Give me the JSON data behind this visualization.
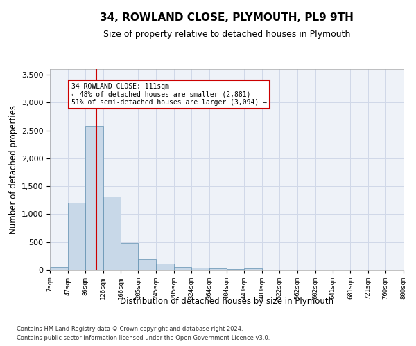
{
  "title": "34, ROWLAND CLOSE, PLYMOUTH, PL9 9TH",
  "subtitle": "Size of property relative to detached houses in Plymouth",
  "xlabel": "Distribution of detached houses by size in Plymouth",
  "ylabel": "Number of detached properties",
  "bin_labels": [
    "7sqm",
    "47sqm",
    "86sqm",
    "126sqm",
    "166sqm",
    "205sqm",
    "245sqm",
    "285sqm",
    "324sqm",
    "364sqm",
    "404sqm",
    "443sqm",
    "483sqm",
    "522sqm",
    "562sqm",
    "602sqm",
    "641sqm",
    "681sqm",
    "721sqm",
    "760sqm",
    "800sqm"
  ],
  "bin_edges": [
    7,
    47,
    86,
    126,
    166,
    205,
    245,
    285,
    324,
    364,
    404,
    443,
    483,
    522,
    562,
    602,
    641,
    681,
    721,
    760,
    800
  ],
  "bar_heights": [
    50,
    1200,
    2580,
    1320,
    490,
    200,
    110,
    50,
    40,
    20,
    15,
    30,
    5,
    0,
    0,
    0,
    0,
    0,
    0,
    0
  ],
  "bar_color": "#c8d8e8",
  "bar_edge_color": "#6090b0",
  "grid_color": "#d0d8e8",
  "property_size": 111,
  "property_line_color": "#cc0000",
  "annotation_text": "34 ROWLAND CLOSE: 111sqm\n← 48% of detached houses are smaller (2,881)\n51% of semi-detached houses are larger (3,094) →",
  "annotation_box_color": "#ffffff",
  "annotation_box_edge_color": "#cc0000",
  "ylim": [
    0,
    3600
  ],
  "yticks": [
    0,
    500,
    1000,
    1500,
    2000,
    2500,
    3000,
    3500
  ],
  "footer_line1": "Contains HM Land Registry data © Crown copyright and database right 2024.",
  "footer_line2": "Contains public sector information licensed under the Open Government Licence v3.0.",
  "background_color": "#ffffff",
  "plot_background_color": "#eef2f8"
}
